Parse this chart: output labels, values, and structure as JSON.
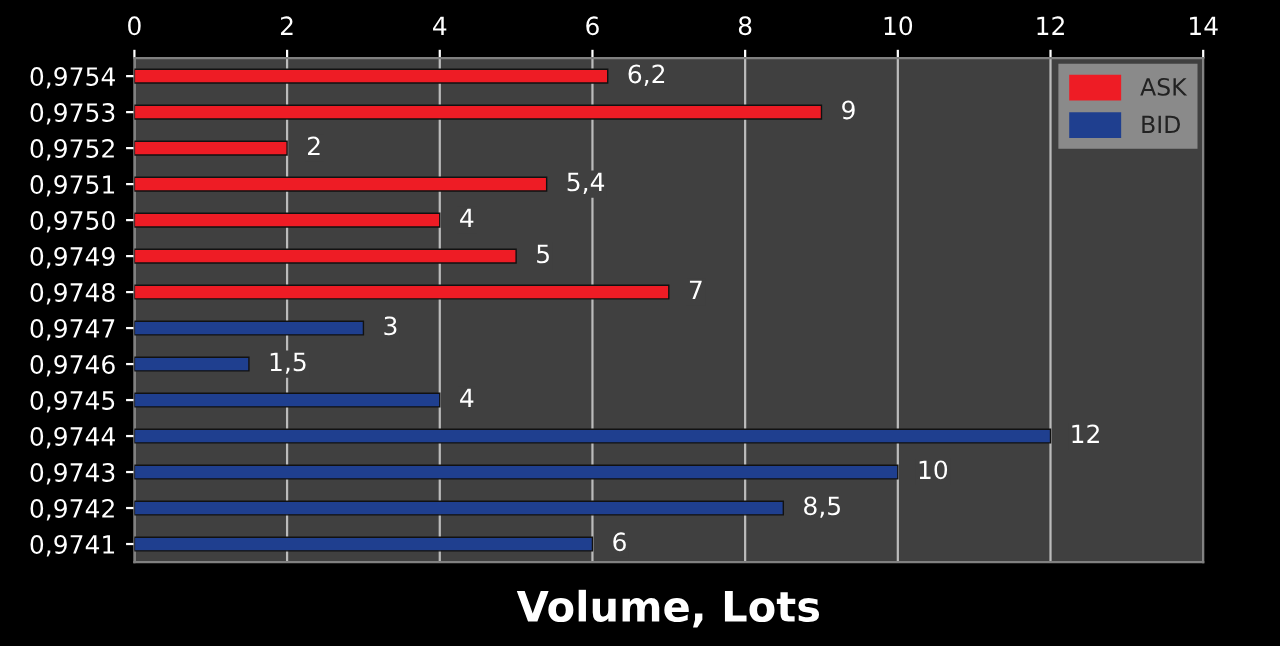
{
  "chart_data": {
    "type": "bar",
    "orientation": "horizontal",
    "xlabel": "Volume, Lots",
    "categories": [
      "0,9754",
      "0,9753",
      "0,9752",
      "0,9751",
      "0,9750",
      "0,9749",
      "0,9748",
      "0,9747",
      "0,9746",
      "0,9745",
      "0,9744",
      "0,9743",
      "0,9742",
      "0,9741"
    ],
    "series": [
      {
        "name": "ASK",
        "color": "#ee1c25",
        "values": [
          6.2,
          9,
          2,
          5.4,
          4,
          5,
          7,
          null,
          null,
          null,
          null,
          null,
          null,
          null
        ],
        "value_labels": [
          "6,2",
          "9",
          "2",
          "5,4",
          "4",
          "5",
          "7",
          null,
          null,
          null,
          null,
          null,
          null,
          null
        ]
      },
      {
        "name": "BID",
        "color": "#1f3f8f",
        "values": [
          null,
          null,
          null,
          null,
          null,
          null,
          null,
          3,
          1.5,
          4,
          12,
          10,
          8.5,
          6
        ],
        "value_labels": [
          null,
          null,
          null,
          null,
          null,
          null,
          null,
          "3",
          "1,5",
          "4",
          "12",
          "10",
          "8,5",
          "6"
        ]
      }
    ],
    "xlim": [
      0,
      14
    ],
    "xticks": [
      0,
      2,
      4,
      6,
      8,
      10,
      12,
      14
    ],
    "grid": "x",
    "legend": "top right"
  }
}
